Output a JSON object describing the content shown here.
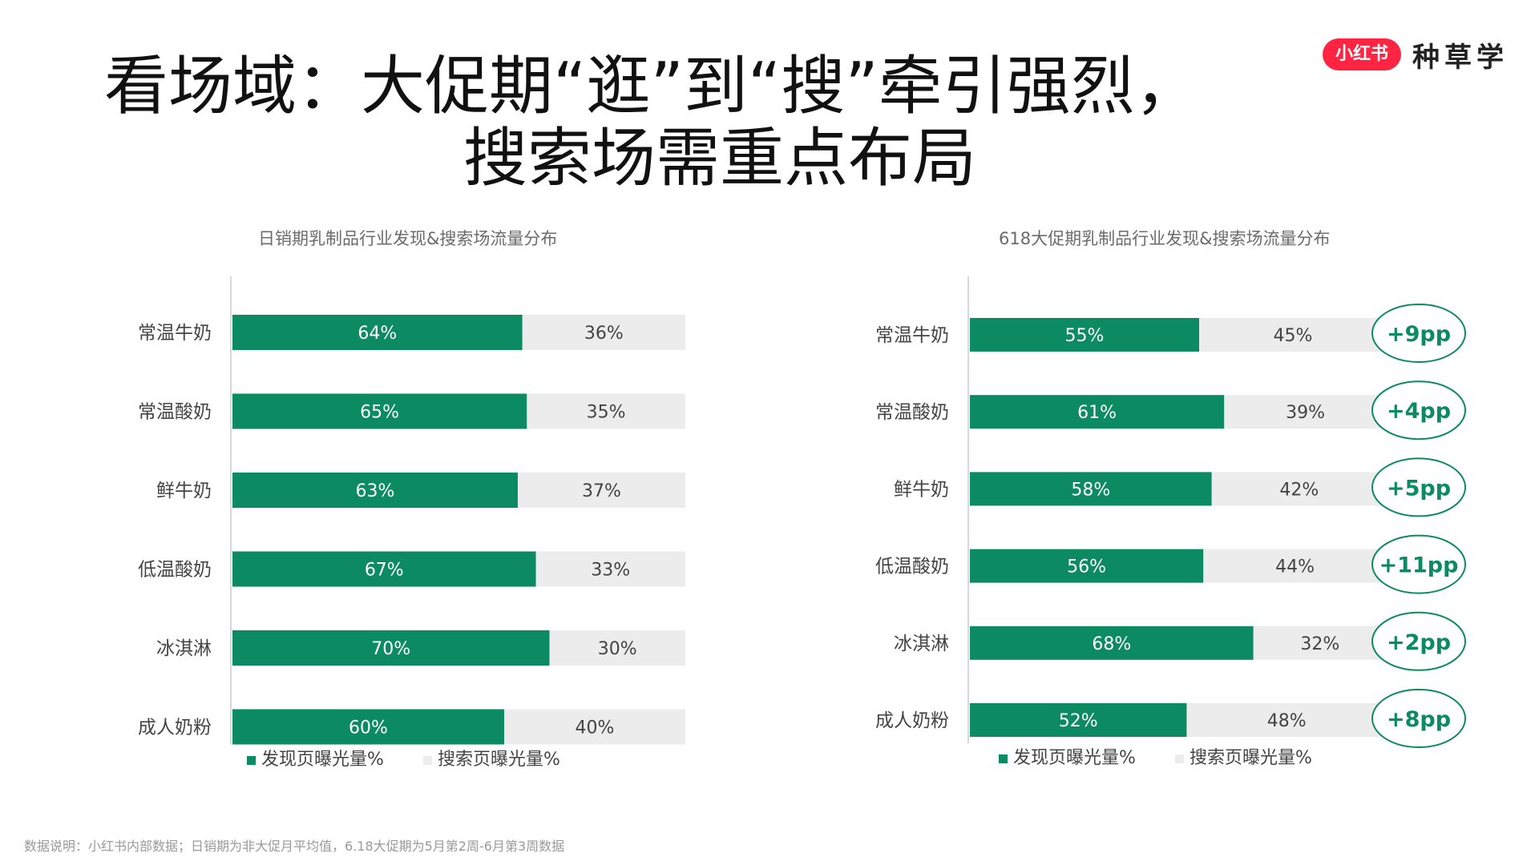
{
  "title": {
    "line1": "看场域：大促期“逛”到“搜”牵引强烈，",
    "line2": "搜索场需重点布局"
  },
  "brand": {
    "badge": "小红书",
    "text": "种草学"
  },
  "colors": {
    "discover": "#0c8a61",
    "search": "#ececec",
    "ring": "#0c8a61"
  },
  "footnote": "数据说明：小红书内部数据；日销期为非大促月平均值，6.18大促期为5月第2周-6月第3周数据",
  "chart_data": [
    {
      "type": "bar",
      "stacked": true,
      "orientation": "horizontal",
      "title": "日销期乳制品行业发现&搜索场流量分布",
      "categories": [
        "常温牛奶",
        "常温酸奶",
        "鲜牛奶",
        "低温酸奶",
        "冰淇淋",
        "成人奶粉"
      ],
      "series": [
        {
          "name": "发现页曝光量%",
          "values": [
            64,
            65,
            63,
            67,
            70,
            60
          ]
        },
        {
          "name": "搜索页曝光量%",
          "values": [
            36,
            35,
            37,
            33,
            30,
            40
          ]
        }
      ],
      "data_labels": {
        "发现页曝光量%": [
          "64%",
          "65%",
          "63%",
          "67%",
          "70%",
          "60%"
        ],
        "搜索页曝光量%": [
          "36%",
          "35%",
          "37%",
          "33%",
          "30%",
          "40%"
        ]
      },
      "xlim": [
        0,
        100
      ],
      "legend_position": "bottom"
    },
    {
      "type": "bar",
      "stacked": true,
      "orientation": "horizontal",
      "title": "618大促期乳制品行业发现&搜索场流量分布",
      "categories": [
        "常温牛奶",
        "常温酸奶",
        "鲜牛奶",
        "低温酸奶",
        "冰淇淋",
        "成人奶粉"
      ],
      "series": [
        {
          "name": "发现页曝光量%",
          "values": [
            55,
            61,
            58,
            56,
            68,
            52
          ]
        },
        {
          "name": "搜索页曝光量%",
          "values": [
            45,
            39,
            42,
            44,
            32,
            48
          ]
        }
      ],
      "data_labels": {
        "发现页曝光量%": [
          "55%",
          "61%",
          "58%",
          "56%",
          "68%",
          "52%"
        ],
        "搜索页曝光量%": [
          "45%",
          "39%",
          "42%",
          "44%",
          "32%",
          "48%"
        ]
      },
      "annotations": [
        "+9pp",
        "+4pp",
        "+5pp",
        "+11pp",
        "+2pp",
        "+8pp"
      ],
      "xlim": [
        0,
        100
      ],
      "legend_position": "bottom"
    }
  ]
}
